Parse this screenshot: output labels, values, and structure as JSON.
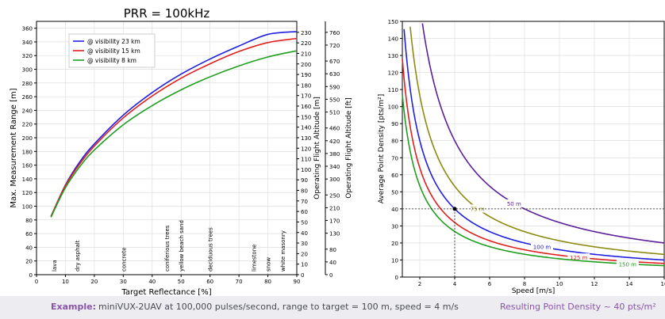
{
  "chart_data": [
    {
      "type": "line",
      "title": "PRR = 100kHz",
      "xlabel": "Target Reflectance [%]",
      "ylabel": "Max. Measurement Range [m]",
      "ylabel_right_1": "Operating Flight Altitude [m]",
      "ylabel_right_2": "Operating Flight Altitude [ft]",
      "xlim": [
        0,
        90
      ],
      "ylim": [
        0,
        370
      ],
      "xticks": [
        "0",
        "10",
        "20",
        "30",
        "40",
        "50",
        "60",
        "70",
        "80",
        "90"
      ],
      "yticks": [
        "0",
        "20",
        "40",
        "60",
        "80",
        "100",
        "120",
        "140",
        "160",
        "180",
        "200",
        "220",
        "240",
        "260",
        "280",
        "300",
        "320",
        "340",
        "360"
      ],
      "right_ticks_m": [
        "0",
        "10",
        "20",
        "30",
        "40",
        "50",
        "60",
        "70",
        "80",
        "90",
        "100",
        "110",
        "120",
        "130",
        "140",
        "150",
        "160",
        "170",
        "180",
        "190",
        "200",
        "210",
        "220",
        "230"
      ],
      "right_ticks_ft": [
        "0",
        "40",
        "80",
        "130",
        "170",
        "210",
        "250",
        "300",
        "340",
        "380",
        "420",
        "460",
        "510",
        "550",
        "590",
        "630",
        "670",
        "720",
        "760"
      ],
      "grid": true,
      "legend_position": "top-left",
      "series": [
        {
          "name": "@ visibility 23 km",
          "color": "#1f1fe0",
          "x": [
            5,
            10,
            15,
            20,
            30,
            40,
            50,
            60,
            70,
            80,
            90
          ],
          "y": [
            85,
            131,
            165,
            191,
            233,
            266,
            293,
            315,
            334,
            351,
            355
          ]
        },
        {
          "name": "@ visibility 15 km",
          "color": "#e01f1f",
          "x": [
            5,
            10,
            15,
            20,
            30,
            40,
            50,
            60,
            70,
            80,
            90
          ],
          "y": [
            85,
            130,
            162,
            188,
            229,
            261,
            287,
            308,
            326,
            339,
            345
          ]
        },
        {
          "name": "@ visibility 8 km",
          "color": "#1f9e1f",
          "x": [
            5,
            10,
            15,
            20,
            30,
            40,
            50,
            60,
            70,
            80,
            90
          ],
          "y": [
            84,
            127,
            158,
            182,
            219,
            247,
            270,
            289,
            305,
            318,
            327
          ]
        }
      ],
      "annotations": [
        {
          "label": "lava",
          "x": 6
        },
        {
          "label": "dry asphalt",
          "x": 14
        },
        {
          "label": "concrete",
          "x": 30
        },
        {
          "label": "coniferious trees",
          "x": 45
        },
        {
          "label": "yellow beach sand",
          "x": 50
        },
        {
          "label": "deciduous trees",
          "x": 60
        },
        {
          "label": "limestone",
          "x": 75
        },
        {
          "label": "snow",
          "x": 80
        },
        {
          "label": "white masonry",
          "x": 85
        }
      ]
    },
    {
      "type": "line",
      "xlabel": "Speed [m/s]",
      "ylabel": "Average Point Density [pts/m²]",
      "xlim": [
        1,
        16
      ],
      "ylim": [
        0,
        150
      ],
      "xticks": [
        "2",
        "4",
        "6",
        "8",
        "10",
        "12",
        "14",
        "16"
      ],
      "yticks": [
        "0",
        "10",
        "20",
        "30",
        "40",
        "50",
        "60",
        "70",
        "80",
        "90",
        "100",
        "110",
        "120",
        "130",
        "140",
        "150"
      ],
      "grid": true,
      "series": [
        {
          "name": "50 m",
          "color": "#5c1f9a",
          "constant": 320
        },
        {
          "name": "75 m",
          "color": "#8e8a10",
          "constant": 213
        },
        {
          "name": "100 m",
          "color": "#1f1fe0",
          "constant": 160
        },
        {
          "name": "125 m",
          "color": "#e01f1f",
          "constant": 128
        },
        {
          "name": "150 m",
          "color": "#1f9e1f",
          "constant": 107
        }
      ],
      "marker": {
        "x": 4,
        "y": 40
      }
    }
  ],
  "footer": {
    "example_label": "Example:",
    "example_text": "miniVUX-2UAV at 100,000 pulses/second, range to target = 100 m, speed = 4 m/s",
    "result_text": "Resulting Point Density ~ 40 pts/m²"
  },
  "colors": {
    "accent": "#8a55a7",
    "grid": "#d8d8d8"
  }
}
